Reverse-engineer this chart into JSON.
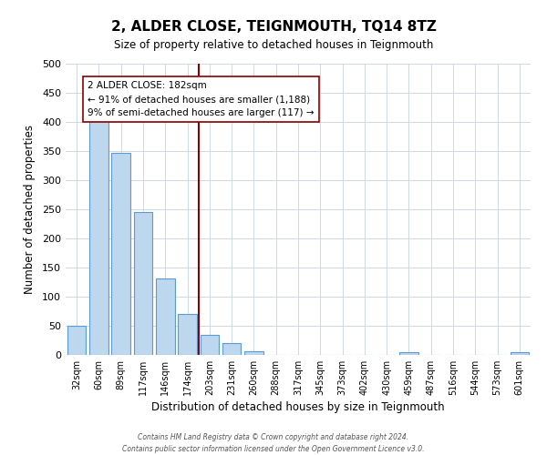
{
  "title": "2, ALDER CLOSE, TEIGNMOUTH, TQ14 8TZ",
  "subtitle": "Size of property relative to detached houses in Teignmouth",
  "xlabel": "Distribution of detached houses by size in Teignmouth",
  "ylabel": "Number of detached properties",
  "bar_labels": [
    "32sqm",
    "60sqm",
    "89sqm",
    "117sqm",
    "146sqm",
    "174sqm",
    "203sqm",
    "231sqm",
    "260sqm",
    "288sqm",
    "317sqm",
    "345sqm",
    "373sqm",
    "402sqm",
    "430sqm",
    "459sqm",
    "487sqm",
    "516sqm",
    "544sqm",
    "573sqm",
    "601sqm"
  ],
  "bar_values": [
    50,
    403,
    347,
    246,
    131,
    70,
    35,
    21,
    6,
    0,
    0,
    0,
    0,
    0,
    0,
    5,
    0,
    0,
    0,
    0,
    4
  ],
  "bar_color": "#bdd7ee",
  "bar_edge_color": "#5b9bd5",
  "vline_x": 5.5,
  "vline_color": "#8b0000",
  "annotation_line1": "2 ALDER CLOSE: 182sqm",
  "annotation_line2": "← 91% of detached houses are smaller (1,188)",
  "annotation_line3": "9% of semi-detached houses are larger (117) →",
  "annotation_box_color": "#ffffff",
  "annotation_box_edge": "#8b0000",
  "ylim": [
    0,
    500
  ],
  "yticks": [
    0,
    50,
    100,
    150,
    200,
    250,
    300,
    350,
    400,
    450,
    500
  ],
  "footer_line1": "Contains HM Land Registry data © Crown copyright and database right 2024.",
  "footer_line2": "Contains public sector information licensed under the Open Government Licence v3.0.",
  "background_color": "#ffffff",
  "grid_color": "#d0d8e8"
}
